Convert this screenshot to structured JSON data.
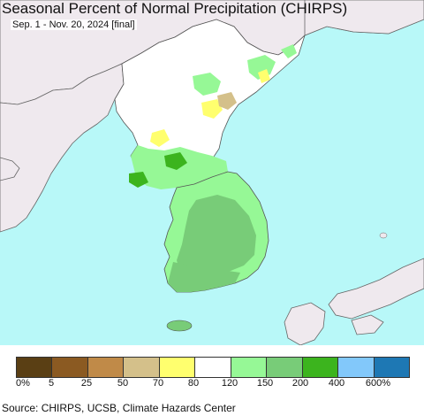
{
  "title": "Seasonal Percent of Normal Precipitation (CHIRPS)",
  "subtitle": "Sep. 1 - Nov. 20, 2024 [final]",
  "source": "Source: CHIRPS, UCSB, Climate Hazards Center",
  "map": {
    "sea_color": "#b8f8f8",
    "outside_land_color": "#efe9ee",
    "normal_color": "#ffffff",
    "regions_shown": [
      "Korean Peninsula",
      "China (Liaoning)",
      "Russia (Primorsky)",
      "Japan (west)"
    ]
  },
  "legend": {
    "colors": [
      "#5a3f14",
      "#8b5a22",
      "#c08a48",
      "#d4c08a",
      "#ffff6e",
      "#ffffff",
      "#96f896",
      "#78cc78",
      "#3cb41e",
      "#82c8fa",
      "#1e78b4"
    ],
    "labels": [
      "0%",
      "5",
      "25",
      "50",
      "70",
      "80",
      "120",
      "150",
      "200",
      "400",
      "600%"
    ]
  }
}
